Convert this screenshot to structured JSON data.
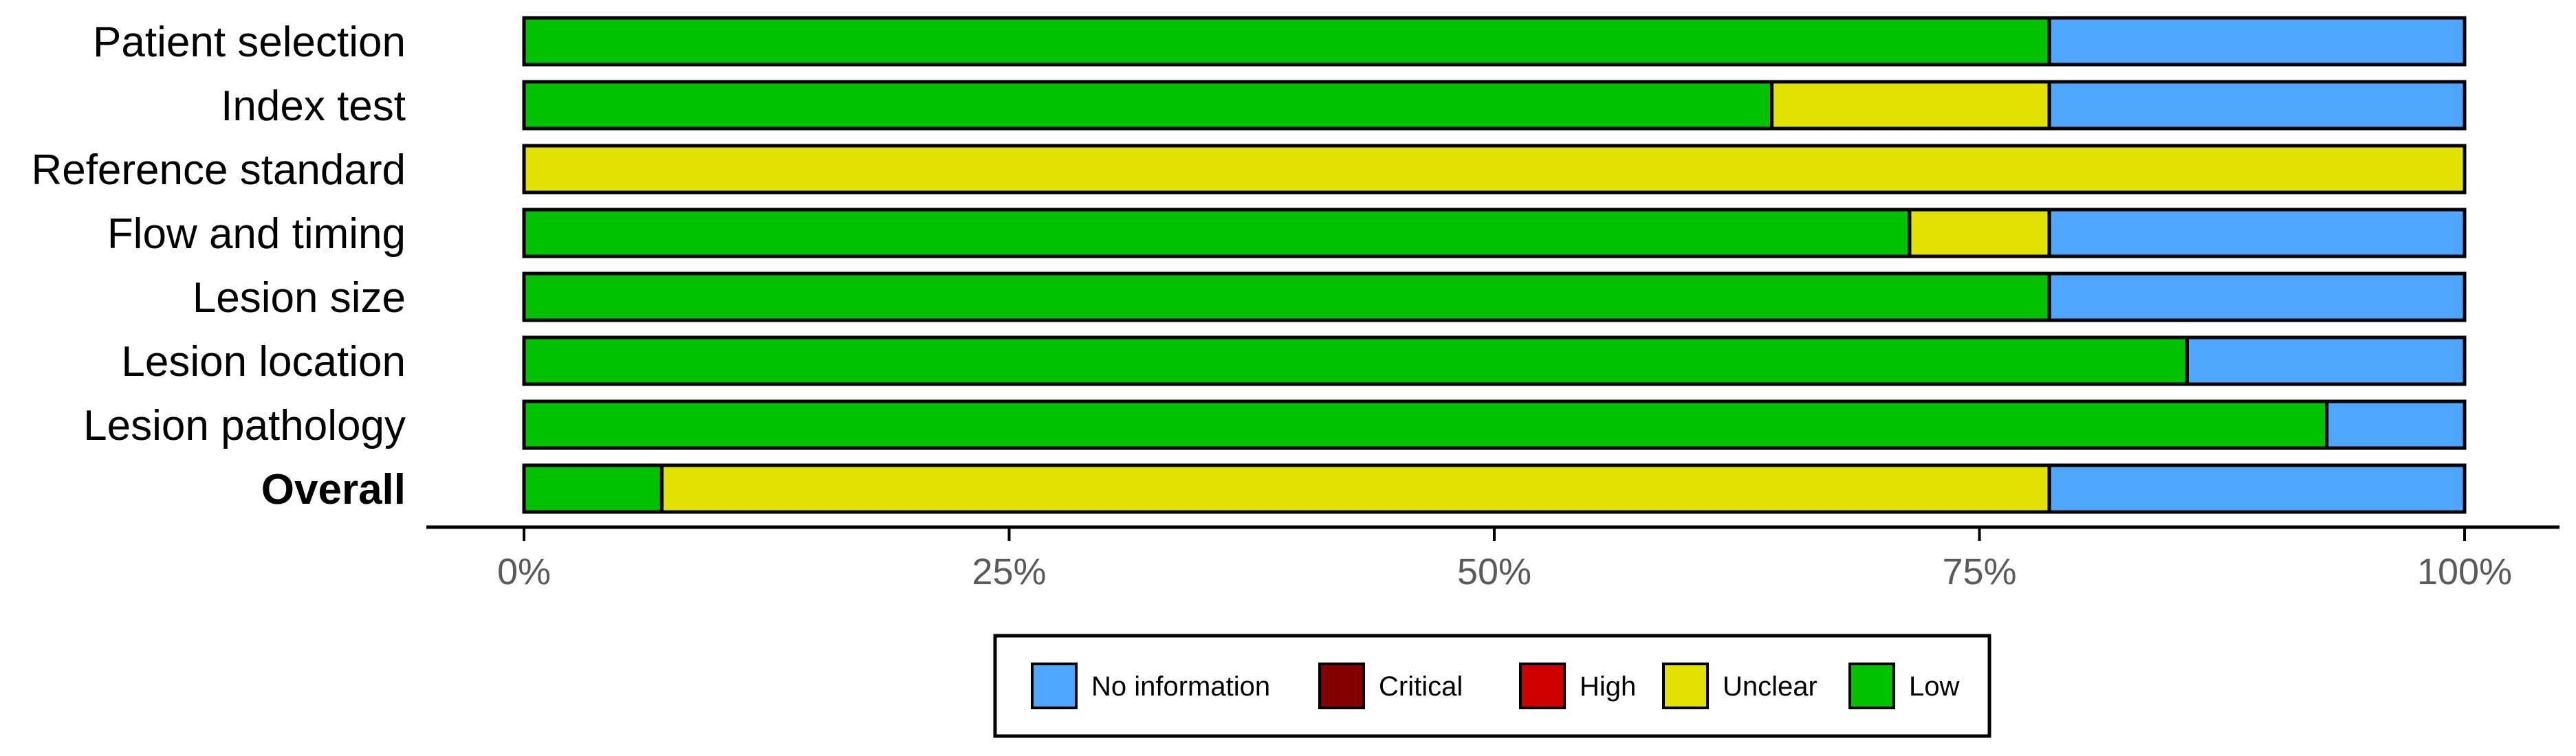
{
  "chart_data": {
    "type": "bar",
    "orientation": "horizontal",
    "stacked": true,
    "categories": [
      "Patient selection",
      "Index test",
      "Reference standard",
      "Flow and timing",
      "Lesion size",
      "Lesion location",
      "Lesion pathology",
      "Overall"
    ],
    "bold_categories": [
      "Overall"
    ],
    "series": [
      {
        "name": "Low",
        "color": "#02c100",
        "values": [
          78.6,
          64.3,
          0,
          71.4,
          78.6,
          85.7,
          92.9,
          7.1
        ]
      },
      {
        "name": "Unclear",
        "color": "#e1e102",
        "values": [
          0,
          14.3,
          100,
          7.2,
          0,
          0,
          0,
          71.5
        ]
      },
      {
        "name": "High",
        "color": "#cf0000",
        "values": [
          0,
          0,
          0,
          0,
          0,
          0,
          0,
          0
        ]
      },
      {
        "name": "Critical",
        "color": "#820000",
        "values": [
          0,
          0,
          0,
          0,
          0,
          0,
          0,
          0
        ]
      },
      {
        "name": "No information",
        "color": "#4eA6FF",
        "values": [
          21.4,
          21.4,
          0,
          21.4,
          21.4,
          14.3,
          7.1,
          21.4
        ]
      }
    ],
    "stack_order": [
      "Low",
      "Unclear",
      "High",
      "Critical",
      "No information"
    ],
    "legend_order": [
      "No information",
      "Critical",
      "High",
      "Unclear",
      "Low"
    ],
    "xlim": [
      0,
      100
    ],
    "xticks": [
      0,
      25,
      50,
      75,
      100
    ],
    "xtick_labels": [
      "0%",
      "25%",
      "50%",
      "75%",
      "100%"
    ],
    "title": "",
    "xlabel": "",
    "ylabel": "",
    "legend_position": "bottom",
    "grid": false
  }
}
